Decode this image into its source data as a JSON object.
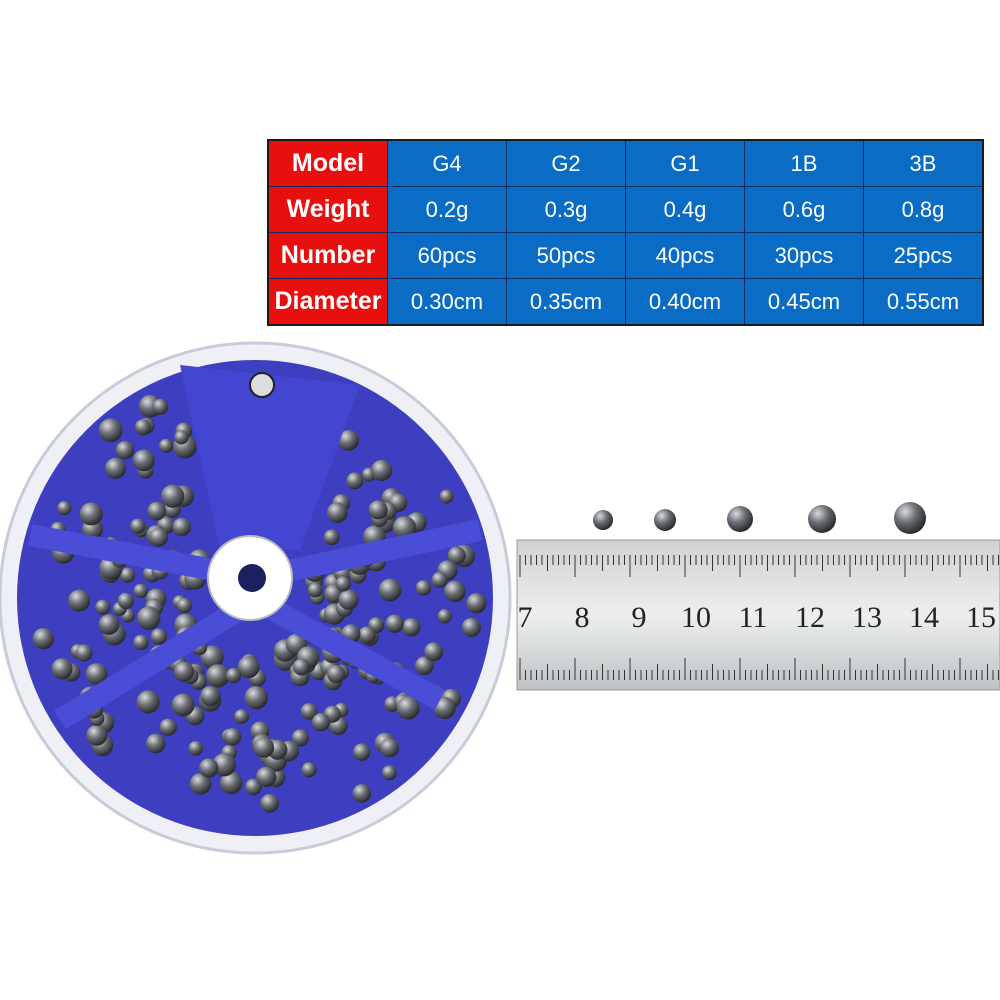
{
  "spec_table": {
    "rows": [
      {
        "label": "Model",
        "values": [
          "G4",
          "G2",
          "G1",
          "1B",
          "3B"
        ]
      },
      {
        "label": "Weight",
        "values": [
          "0.2g",
          "0.3g",
          "0.4g",
          "0.6g",
          "0.8g"
        ]
      },
      {
        "label": "Number",
        "values": [
          "60pcs",
          "50pcs",
          "40pcs",
          "30pcs",
          "25pcs"
        ]
      },
      {
        "label": "Diameter",
        "values": [
          "0.30cm",
          "0.35cm",
          "0.40cm",
          "0.45cm",
          "0.55cm"
        ]
      }
    ],
    "colors": {
      "header": "#e80f0f",
      "cell": "#0a6cc4"
    }
  },
  "ruler": {
    "numbers": [
      "7",
      "8",
      "9",
      "10",
      "11",
      "12",
      "13",
      "14",
      "15"
    ]
  }
}
